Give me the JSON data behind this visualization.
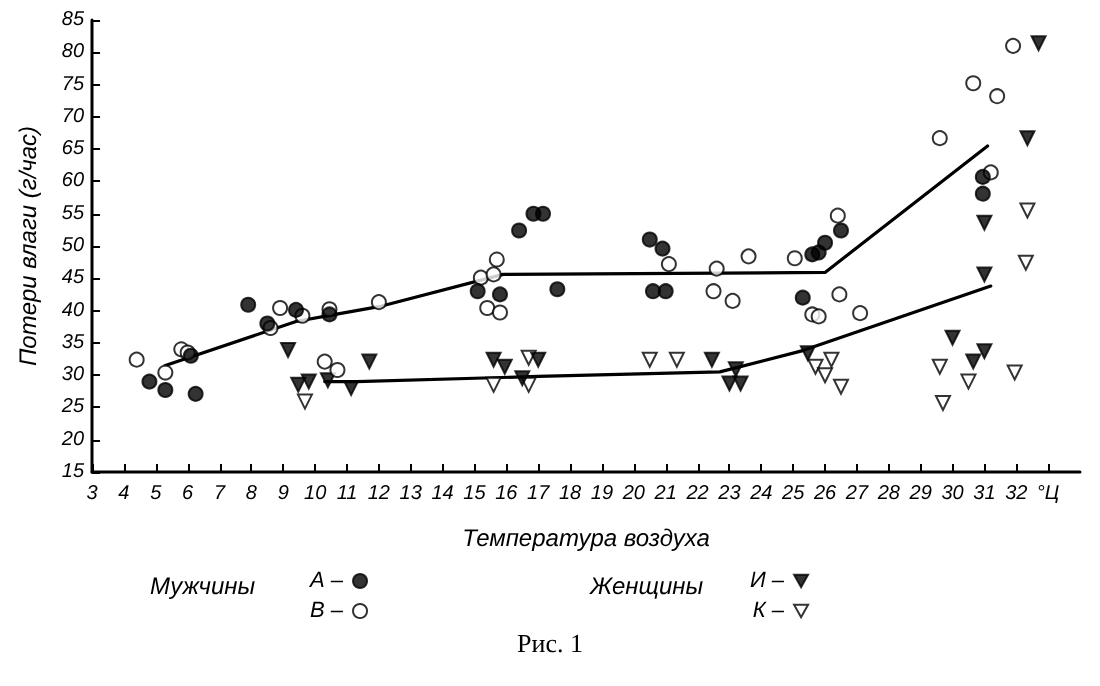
{
  "chart_data": {
    "type": "scatter",
    "xlabel": "Температура воздуха",
    "ylabel": "Потери влаги (г/час)",
    "annotations": [
      "Мужчины",
      "Женщины",
      "Рис. 1"
    ],
    "xlim": [
      3,
      34
    ],
    "ylim": [
      15,
      85
    ],
    "xticks": [
      3,
      4,
      5,
      6,
      7,
      8,
      9,
      10,
      11,
      12,
      13,
      14,
      15,
      16,
      17,
      18,
      19,
      20,
      21,
      22,
      23,
      24,
      25,
      26,
      27,
      28,
      29,
      30,
      31,
      32,
      {
        "value": 33,
        "label": "°Ц"
      }
    ],
    "yticks": [
      15,
      20,
      25,
      30,
      35,
      40,
      45,
      50,
      55,
      60,
      65,
      70,
      75,
      80,
      85
    ],
    "grid": false,
    "legend": "bottom",
    "series": [
      {
        "name": "А –",
        "color": "#000000",
        "marker": "circle",
        "x": [
          4.8,
          5.3,
          6.25,
          6.1,
          7.9,
          8.5,
          9.4,
          10.45,
          15.1,
          15.8,
          16.4,
          16.85,
          17.15,
          17.6,
          20.5,
          20.9,
          20.6,
          21.0,
          25.3,
          25.6,
          25.8,
          26.0,
          26.5,
          30.95,
          30.95
        ],
        "values": [
          29,
          27.7,
          27.1,
          33,
          40.9,
          38,
          40.1,
          39.4,
          43,
          42.5,
          52.4,
          55,
          55,
          43.3,
          51,
          49.6,
          43,
          43,
          42,
          48.7,
          49,
          50.5,
          52.4,
          60.7,
          58.1
        ]
      },
      {
        "name": "В –",
        "color": "#ffffff",
        "marker": "circle",
        "x": [
          4.4,
          5.3,
          5.8,
          6.0,
          8.6,
          8.9,
          9.6,
          10.45,
          12.0,
          15.2,
          15.6,
          15.7,
          15.4,
          15.8,
          10.3,
          10.7,
          21.1,
          22.6,
          23.6,
          25.05,
          26.4,
          22.5,
          23.1,
          26.45,
          27.1,
          25.6,
          25.8,
          29.6,
          30.65,
          31.4,
          31.9,
          31.2
        ],
        "values": [
          32.4,
          30.4,
          34,
          33.5,
          37.3,
          40.4,
          39.2,
          40.2,
          41.3,
          45.1,
          45.6,
          47.9,
          40.4,
          39.7,
          32.1,
          30.8,
          47.2,
          46.5,
          48.4,
          48.1,
          54.7,
          43,
          41.5,
          42.5,
          39.6,
          39.4,
          39.1,
          66.7,
          75.2,
          73.2,
          81,
          61.4
        ]
      },
      {
        "name": "И –",
        "color": "#000000",
        "marker": "triangle",
        "x": [
          9.15,
          9.47,
          9.8,
          10.4,
          11.13,
          11.7,
          15.6,
          15.95,
          16.5,
          17.0,
          22.45,
          23.2,
          23.0,
          23.35,
          25.46,
          30.0,
          30.65,
          31.0,
          31.0,
          32.35,
          32.7,
          31.0
        ],
        "values": [
          33.9,
          28.5,
          29,
          29.2,
          28,
          32.1,
          32.4,
          31.3,
          29.5,
          32.4,
          32.4,
          30.9,
          28.7,
          28.7,
          33.4,
          35.8,
          32.1,
          33.7,
          53.6,
          66.7,
          81.4,
          45.6
        ]
      },
      {
        "name": "К –",
        "color": "#ffffff",
        "marker": "triangle",
        "x": [
          9.68,
          15.6,
          16.7,
          16.7,
          20.5,
          21.35,
          25.7,
          26.0,
          26.5,
          26.2,
          29.6,
          29.7,
          30.5,
          31.95,
          32.3,
          32.35
        ],
        "values": [
          25.9,
          28.5,
          28.5,
          32.7,
          32.4,
          32.4,
          31.3,
          30,
          28.2,
          32.4,
          31.3,
          25.7,
          29,
          30.4,
          47.4,
          55.5
        ]
      },
      {
        "type": "line",
        "color": "#000000",
        "marker": "none",
        "line_style": "solid",
        "x": [
          5.3,
          9.4,
          10.5,
          12,
          15.9,
          26,
          31.1
        ],
        "values": [
          31.5,
          38.3,
          39.3,
          40.6,
          45.6,
          45.9,
          65.5
        ]
      },
      {
        "type": "line",
        "color": "#000000",
        "marker": "none",
        "line_style": "solid",
        "x": [
          10.3,
          11.3,
          17,
          22.7,
          25.3,
          31.2
        ],
        "values": [
          29,
          29,
          29.8,
          30.5,
          33.8,
          43.8
        ]
      }
    ]
  }
}
